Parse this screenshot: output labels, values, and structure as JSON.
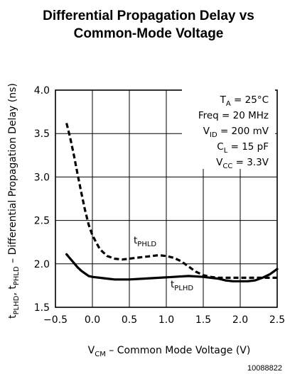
{
  "chart_data": {
    "type": "line",
    "title": [
      "Differential Propagation Delay vs",
      "Common-Mode Voltage"
    ],
    "xlabel": {
      "main": "V",
      "sub": "CM",
      "rest": " – Common Mode Voltage (V)"
    },
    "ylabel": {
      "p1": "t",
      "s1": "PLHD",
      "p2": ", t",
      "s2": "PHLD",
      "p3": " – Differential Propagation Delay (ns)"
    },
    "xlim": [
      -0.5,
      2.5
    ],
    "ylim": [
      1.5,
      4.0
    ],
    "xticks": [
      -0.5,
      0.0,
      0.5,
      1.0,
      1.5,
      2.0,
      2.5
    ],
    "xtick_labels": [
      "−0.5",
      "0.0",
      "0.5",
      "1.0",
      "1.5",
      "2.0",
      "2.5"
    ],
    "yticks": [
      1.5,
      2.0,
      2.5,
      3.0,
      3.5,
      4.0
    ],
    "ytick_labels": [
      "1.5",
      "2.0",
      "2.5",
      "3.0",
      "3.5",
      "4.0"
    ],
    "grid": true,
    "series": [
      {
        "name": {
          "main": "t",
          "sub": "PHLD"
        },
        "style": "dashed",
        "x": [
          -0.35,
          -0.3,
          -0.25,
          -0.2,
          -0.15,
          -0.1,
          -0.05,
          0.0,
          0.05,
          0.1,
          0.2,
          0.3,
          0.4,
          0.5,
          0.6,
          0.7,
          0.8,
          0.9,
          1.0,
          1.1,
          1.2,
          1.3,
          1.4,
          1.5,
          1.6,
          1.7,
          1.8,
          1.9,
          2.0,
          2.1,
          2.2,
          2.3,
          2.4,
          2.5
        ],
        "y": [
          3.62,
          3.45,
          3.25,
          3.03,
          2.82,
          2.62,
          2.45,
          2.33,
          2.25,
          2.17,
          2.09,
          2.06,
          2.05,
          2.06,
          2.07,
          2.08,
          2.09,
          2.1,
          2.09,
          2.07,
          2.03,
          1.97,
          1.91,
          1.87,
          1.85,
          1.84,
          1.84,
          1.84,
          1.84,
          1.84,
          1.84,
          1.84,
          1.84,
          1.84
        ]
      },
      {
        "name": {
          "main": "t",
          "sub": "PLHD"
        },
        "style": "solid",
        "x": [
          -0.35,
          -0.3,
          -0.25,
          -0.2,
          -0.15,
          -0.1,
          -0.05,
          0.0,
          0.1,
          0.2,
          0.3,
          0.4,
          0.5,
          0.7,
          0.9,
          1.1,
          1.3,
          1.5,
          1.7,
          1.8,
          1.9,
          2.0,
          2.1,
          2.2,
          2.3,
          2.4,
          2.5
        ],
        "y": [
          2.11,
          2.06,
          2.01,
          1.96,
          1.92,
          1.89,
          1.86,
          1.85,
          1.84,
          1.83,
          1.82,
          1.82,
          1.82,
          1.83,
          1.84,
          1.85,
          1.86,
          1.85,
          1.83,
          1.81,
          1.8,
          1.8,
          1.8,
          1.81,
          1.84,
          1.88,
          1.94
        ]
      }
    ],
    "conditions": [
      {
        "main": "T",
        "sub": "A",
        "rest": " = 25°C"
      },
      {
        "main": "Freq = 20 MHz",
        "sub": "",
        "rest": ""
      },
      {
        "main": "V",
        "sub": "ID",
        "rest": " = 200 mV"
      },
      {
        "main": "C",
        "sub": "L",
        "rest": " = 15 pF"
      },
      {
        "main": "V",
        "sub": "CC",
        "rest": " = 3.3V"
      }
    ]
  },
  "figure_number": "10088822"
}
